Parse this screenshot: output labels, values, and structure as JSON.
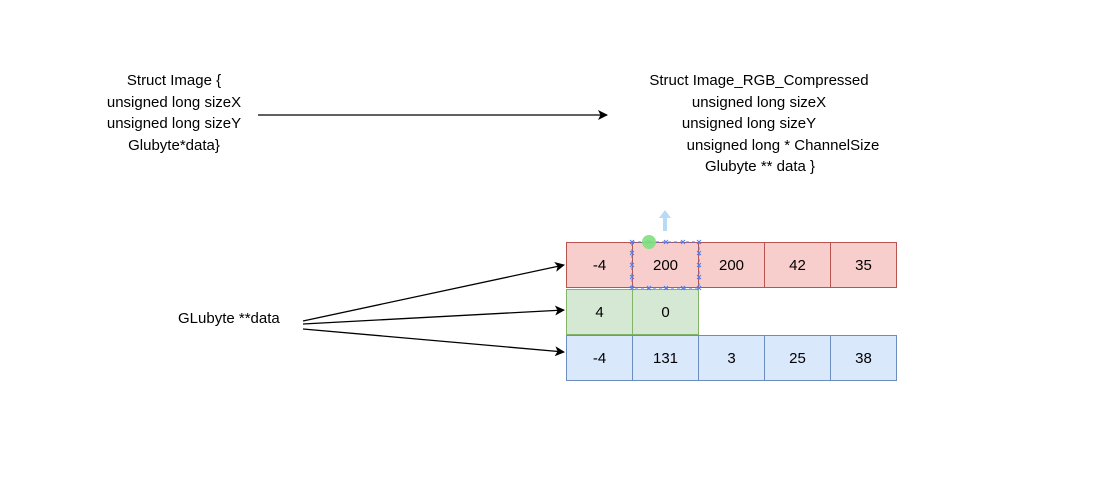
{
  "struct_image": {
    "line1": "Struct Image {",
    "line2": "unsigned long sizeX",
    "line3": "unsigned long sizeY",
    "line4": "Glubyte*data}"
  },
  "struct_rgb": {
    "line1": "Struct Image_RGB_Compressed",
    "line2": "unsigned long sizeX",
    "line3": "unsigned long sizeY",
    "line4": "unsigned long * ChannelSize",
    "line5": "Glubyte ** data }"
  },
  "pointer_label": "GLubyte **data",
  "rows": {
    "red": [
      "-4",
      "200",
      "200",
      "42",
      "35"
    ],
    "green": [
      "4",
      "0"
    ],
    "blue": [
      "-4",
      "131",
      "3",
      "25",
      "38"
    ]
  },
  "colors": {
    "red_fill": "#f8cecc",
    "red_stroke": "#b85450",
    "green_fill": "#d5e8d4",
    "green_stroke": "#82b366",
    "blue_fill": "#dae8fc",
    "blue_stroke": "#6c8ebf",
    "selection": "#4d7cf0",
    "rotate_handle": "#7fe07f",
    "move_handle": "#b7dbf7"
  }
}
